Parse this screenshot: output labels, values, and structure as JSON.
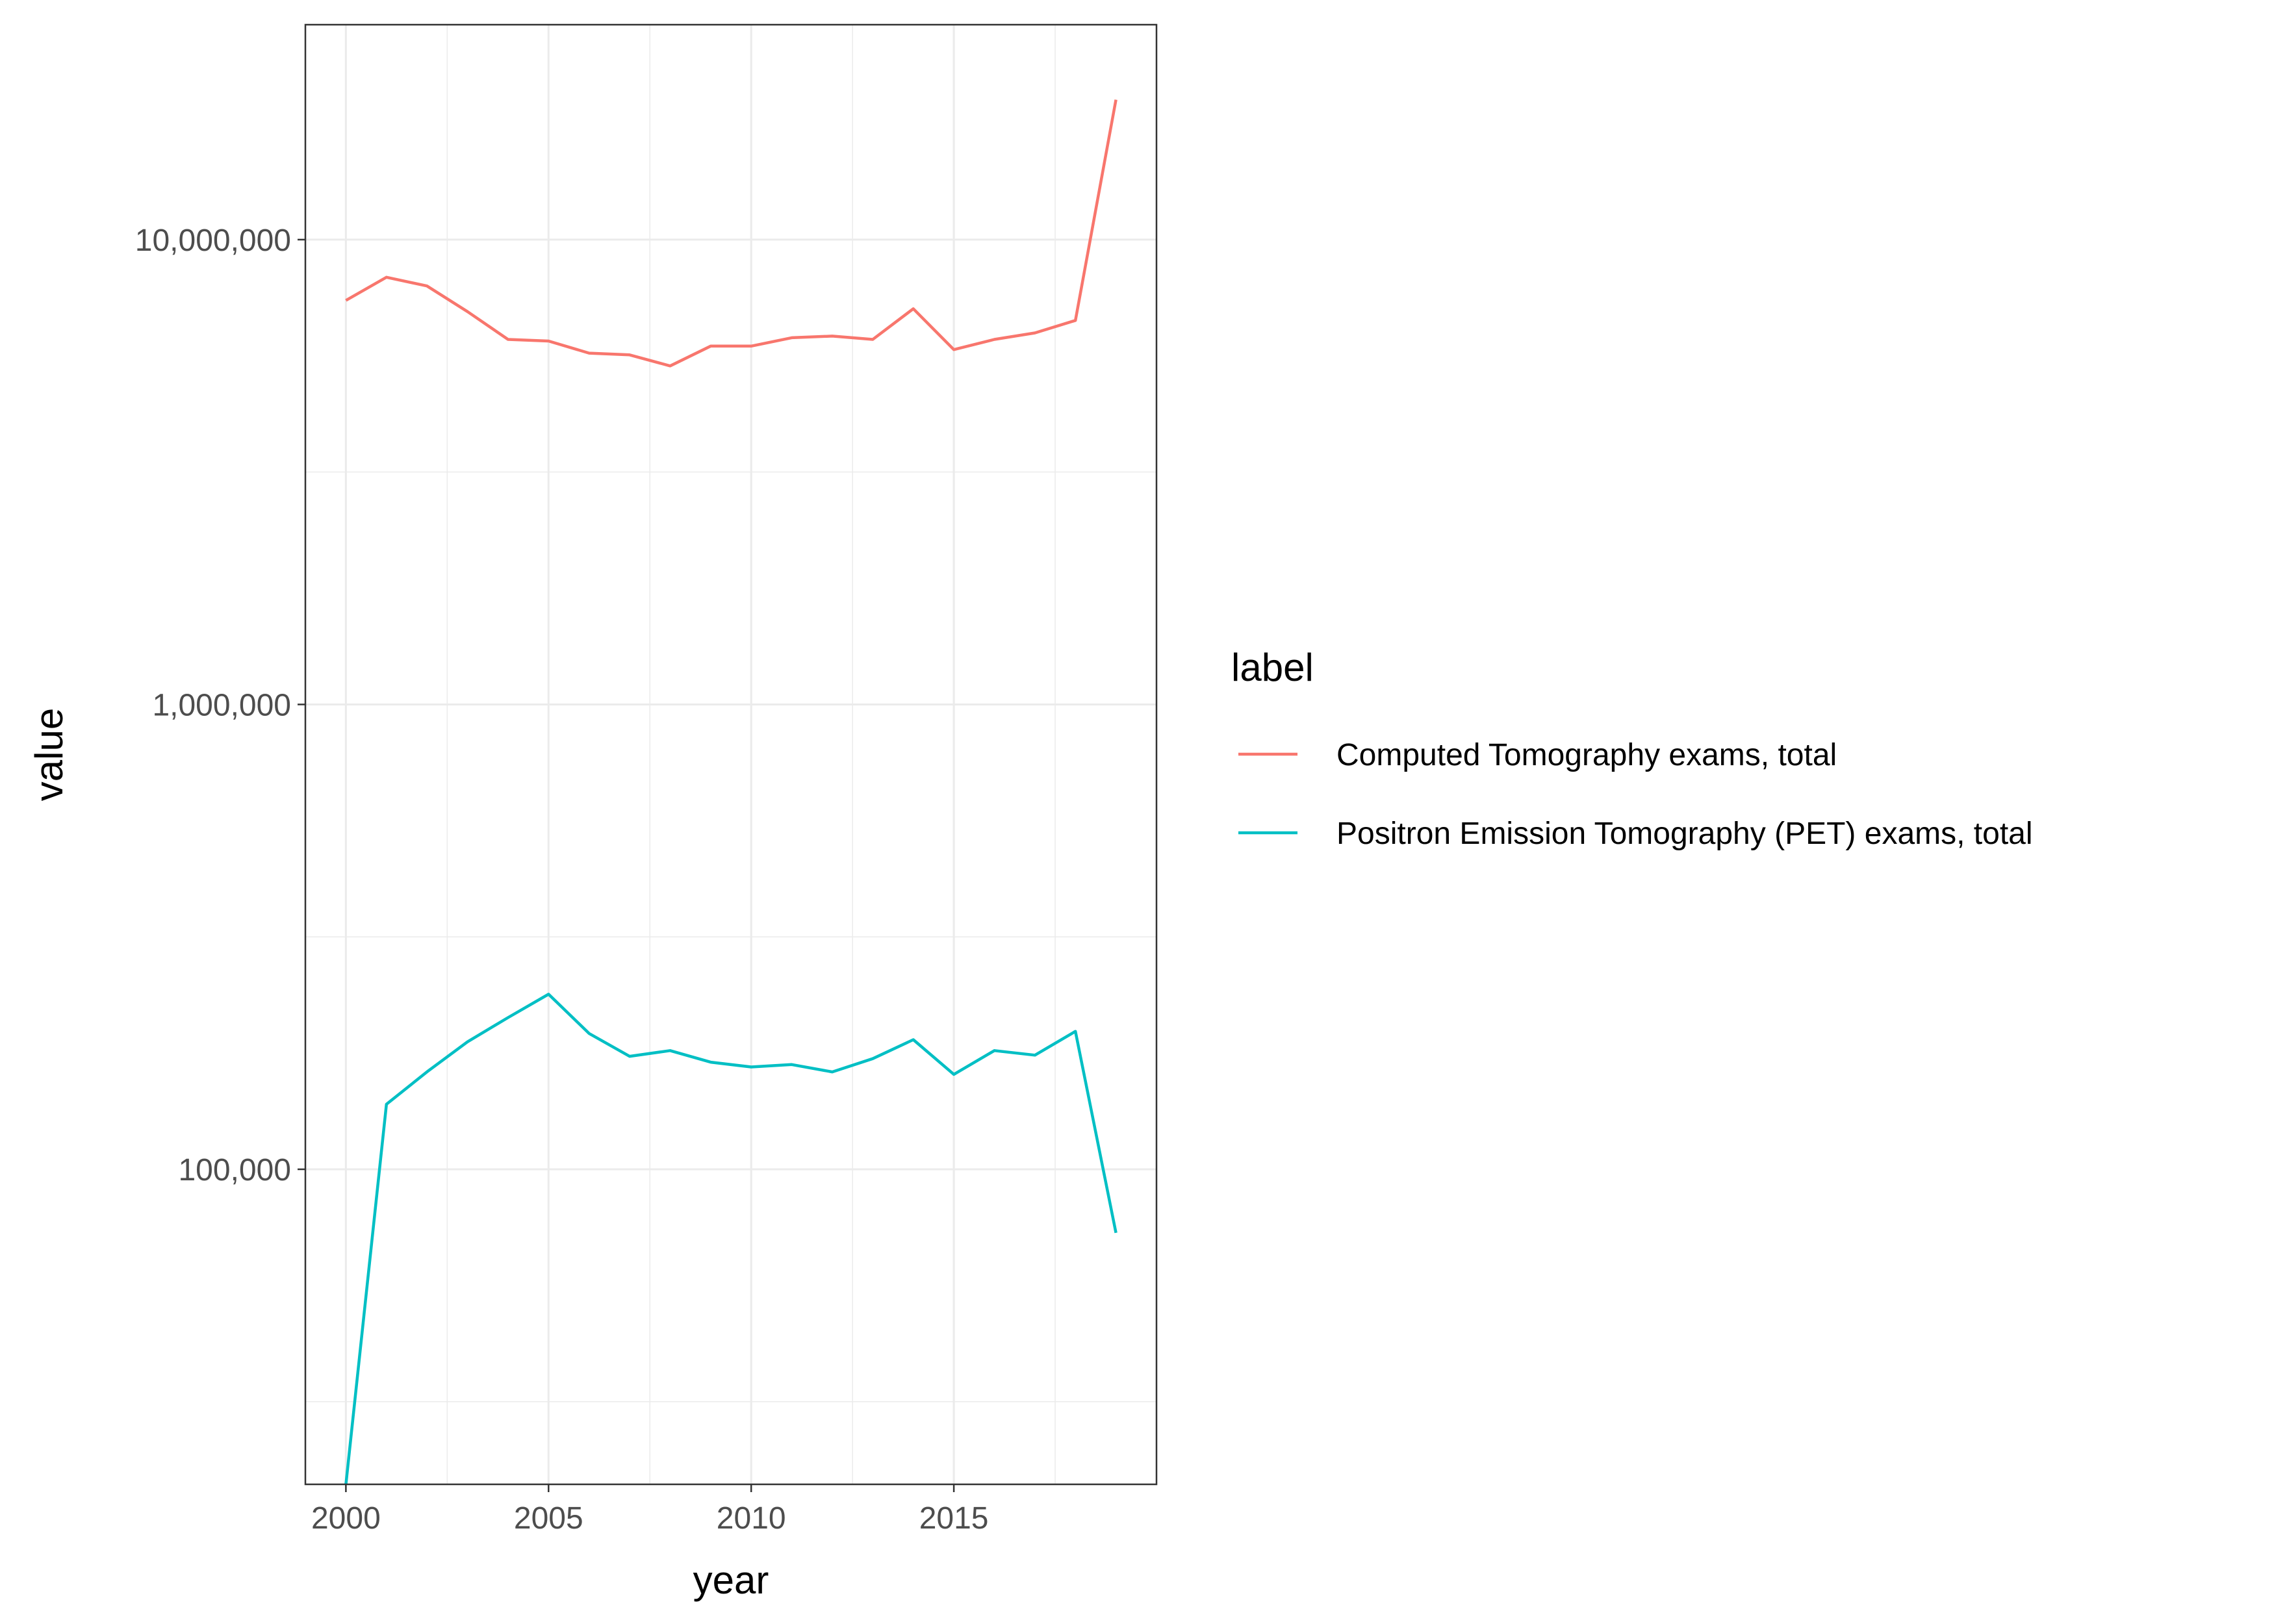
{
  "chart_data": {
    "type": "line",
    "xlabel": "year",
    "ylabel": "value",
    "y_scale": "log10",
    "grid": true,
    "legend": {
      "title": "label",
      "placement": "right"
    },
    "xlim": [
      1999,
      2020
    ],
    "ylim": [
      21000,
      29000000
    ],
    "x_ticks": [
      2000,
      2005,
      2010,
      2015
    ],
    "x_tick_labels": [
      "2000",
      "2005",
      "2010",
      "2015"
    ],
    "y_ticks": [
      100000,
      1000000,
      10000000
    ],
    "y_tick_labels": [
      "100,000",
      "1,000,000",
      "10,000,000"
    ],
    "x": [
      2000,
      2001,
      2002,
      2003,
      2004,
      2005,
      2006,
      2007,
      2008,
      2009,
      2010,
      2011,
      2012,
      2013,
      2014,
      2015,
      2016,
      2017,
      2018,
      2019
    ],
    "series": [
      {
        "name": "Computed Tomography exams, total",
        "color": "#F8766D",
        "values": [
          7400000,
          8300000,
          7950000,
          7000000,
          6100000,
          6050000,
          5700000,
          5650000,
          5350000,
          5900000,
          5900000,
          6150000,
          6200000,
          6100000,
          7100000,
          5800000,
          6100000,
          6300000,
          6700000,
          20000000
        ]
      },
      {
        "name": "Positron Emission Tomography (PET) exams, total",
        "color": "#00BFC4",
        "values": [
          21000,
          138000,
          162000,
          188000,
          212000,
          238000,
          196000,
          175000,
          180000,
          170000,
          166000,
          168000,
          162000,
          173000,
          190000,
          160000,
          180000,
          176000,
          198000,
          73000
        ]
      }
    ]
  }
}
